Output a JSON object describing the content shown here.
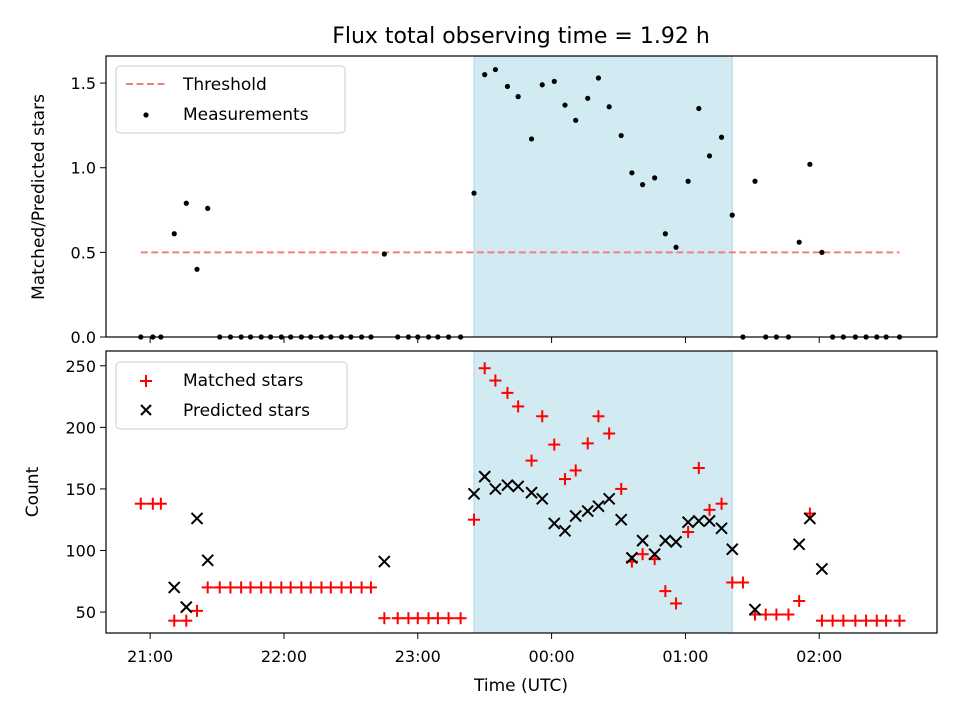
{
  "chart_data": {
    "type": "scatter",
    "title": "Flux total observing time = 1.92 h",
    "xlabel": "Time (UTC)",
    "x_unit": "hours (UTC, values past 24 continue after midnight)",
    "xlim": [
      20.67,
      26.88
    ],
    "x_ticks": [
      {
        "value": 21,
        "label": "21:00"
      },
      {
        "value": 22,
        "label": "22:00"
      },
      {
        "value": 23,
        "label": "23:00"
      },
      {
        "value": 24,
        "label": "00:00"
      },
      {
        "value": 25,
        "label": "01:00"
      },
      {
        "value": 26,
        "label": "02:00"
      }
    ],
    "highlight": {
      "start": 23.42,
      "end": 25.35,
      "color": "#add8e6"
    },
    "top": {
      "ylabel": "Matched/Predicted stars",
      "ylim": [
        0,
        1.66
      ],
      "y_ticks": [
        "0.0",
        "0.5",
        "1.0",
        "1.5"
      ],
      "y_tick_values": [
        0,
        0.5,
        1.0,
        1.5
      ],
      "legend_position": "upper left",
      "threshold": {
        "name": "Threshold",
        "value": 0.5,
        "x_start": 20.93,
        "x_end": 26.6,
        "color": "#f08080"
      },
      "measurements": {
        "name": "Measurements",
        "color": "#000000",
        "x": [
          20.93,
          21.02,
          21.08,
          21.18,
          21.27,
          21.35,
          21.43,
          21.52,
          21.6,
          21.68,
          21.75,
          21.83,
          21.9,
          21.98,
          22.05,
          22.13,
          22.2,
          22.28,
          22.35,
          22.43,
          22.5,
          22.58,
          22.65,
          22.75,
          22.85,
          22.93,
          23.0,
          23.08,
          23.15,
          23.23,
          23.32,
          23.42,
          23.5,
          23.58,
          23.67,
          23.75,
          23.85,
          23.93,
          24.02,
          24.1,
          24.18,
          24.27,
          24.35,
          24.43,
          24.52,
          24.6,
          24.68,
          24.77,
          24.85,
          24.93,
          25.02,
          25.1,
          25.18,
          25.27,
          25.35,
          25.43,
          25.52,
          25.6,
          25.68,
          25.77,
          25.85,
          25.93,
          26.02,
          26.1,
          26.18,
          26.27,
          26.35,
          26.43,
          26.5,
          26.6
        ],
        "y": [
          0,
          0,
          0,
          0.61,
          0.79,
          0.4,
          0.76,
          0,
          0,
          0,
          0,
          0,
          0,
          0,
          0,
          0,
          0,
          0,
          0,
          0,
          0,
          0,
          0,
          0.49,
          0,
          0,
          0,
          0,
          0,
          0,
          0,
          0.85,
          1.55,
          1.58,
          1.48,
          1.42,
          1.17,
          1.49,
          1.51,
          1.37,
          1.28,
          1.41,
          1.53,
          1.36,
          1.19,
          0.97,
          0.9,
          0.94,
          0.61,
          0.53,
          0.92,
          1.35,
          1.07,
          1.18,
          0.72,
          0,
          0.92,
          0,
          0,
          0,
          0.56,
          1.02,
          0.5,
          0,
          0,
          0,
          0,
          0,
          0,
          0
        ]
      }
    },
    "bottom": {
      "ylabel": "Count",
      "ylim": [
        33,
        262
      ],
      "y_ticks": [
        "50",
        "100",
        "150",
        "200",
        "250"
      ],
      "y_tick_values": [
        50,
        100,
        150,
        200,
        250
      ],
      "legend_position": "upper left",
      "series": [
        {
          "name": "Matched stars",
          "marker": "plus",
          "color": "#ff0000",
          "x": [
            20.93,
            21.02,
            21.08,
            21.18,
            21.27,
            21.35,
            21.43,
            21.52,
            21.6,
            21.68,
            21.75,
            21.83,
            21.9,
            21.98,
            22.05,
            22.13,
            22.2,
            22.28,
            22.35,
            22.43,
            22.5,
            22.58,
            22.65,
            22.75,
            22.85,
            22.93,
            23.0,
            23.08,
            23.15,
            23.23,
            23.32,
            23.42,
            23.5,
            23.58,
            23.67,
            23.75,
            23.85,
            23.93,
            24.02,
            24.1,
            24.18,
            24.27,
            24.35,
            24.43,
            24.52,
            24.6,
            24.68,
            24.77,
            24.85,
            24.93,
            25.02,
            25.1,
            25.18,
            25.27,
            25.35,
            25.43,
            25.52,
            25.6,
            25.68,
            25.77,
            25.85,
            25.93,
            26.02,
            26.1,
            26.18,
            26.27,
            26.35,
            26.43,
            26.5,
            26.6
          ],
          "y": [
            138,
            138,
            138,
            43,
            43,
            51,
            70,
            70,
            70,
            70,
            70,
            70,
            70,
            70,
            70,
            70,
            70,
            70,
            70,
            70,
            70,
            70,
            70,
            45,
            45,
            45,
            45,
            45,
            45,
            45,
            45,
            125,
            248,
            238,
            228,
            217,
            173,
            209,
            186,
            158,
            165,
            187,
            209,
            195,
            150,
            91,
            97,
            93,
            67,
            57,
            115,
            167,
            133,
            138,
            74,
            74,
            48,
            48,
            48,
            48,
            59,
            130,
            43,
            43,
            43,
            43,
            43,
            43,
            43,
            43
          ]
        },
        {
          "name": "Predicted stars",
          "marker": "x",
          "color": "#000000",
          "x": [
            21.18,
            21.27,
            21.35,
            21.43,
            22.75,
            23.42,
            23.5,
            23.58,
            23.67,
            23.75,
            23.85,
            23.93,
            24.02,
            24.1,
            24.18,
            24.27,
            24.35,
            24.43,
            24.52,
            24.6,
            24.68,
            24.77,
            24.85,
            24.93,
            25.02,
            25.1,
            25.18,
            25.27,
            25.35,
            25.52,
            25.85,
            25.93,
            26.02
          ],
          "y": [
            70,
            54,
            126,
            92,
            91,
            146,
            160,
            150,
            153,
            152,
            147,
            142,
            122,
            116,
            128,
            132,
            136,
            142,
            125,
            94,
            108,
            97,
            108,
            107,
            123,
            124,
            124,
            118,
            101,
            52,
            105,
            126,
            85
          ]
        }
      ]
    }
  }
}
